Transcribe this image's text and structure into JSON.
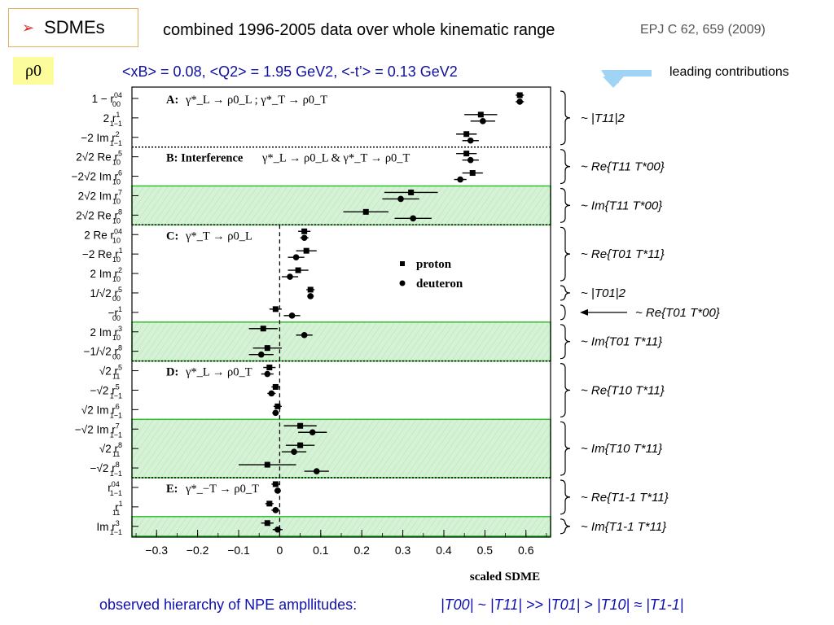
{
  "header": {
    "bullet_icon": "arrow-bullet",
    "title": "SDMEs",
    "subtitle": "combined 1996-2005 data over whole kinematic range",
    "reference": "EPJ C 62, 659 (2009)",
    "meson": "ρ0",
    "kinematics": "<xB> = 0.08,  <Q2> = 1.95 GeV2, <-t’> = 0.13 GeV2",
    "leading_label": "leading contributions"
  },
  "footer": {
    "prefix": "observed hierarchy of NPE ampllitudes:",
    "formula": "|T00| ~ |T11| >> |T01| > |T10| ≈ |T1-1|"
  },
  "colors": {
    "accent_text": "#1010a0",
    "band_fill": "#d6f2d6",
    "band_border": "#30c030",
    "callout_arrow": "#9fd4f4"
  },
  "chart_data": {
    "type": "scatter",
    "xlabel": "scaled SDME",
    "xlim": [
      -0.36,
      0.66
    ],
    "xticks": [
      "−0.3",
      "−0.2",
      "−0.1",
      "0",
      "0.1",
      "0.2",
      "0.3",
      "0.4",
      "0.5",
      "0.6"
    ],
    "legend": {
      "position": "middle-right",
      "entries": [
        {
          "marker": "square",
          "label": "proton"
        },
        {
          "marker": "circle",
          "label": "deuteron"
        }
      ]
    },
    "rows": [
      "1 − r^04_00",
      "2 r^1_1−1",
      "−2 Im r^2_1−1",
      "2√2 Re r^5_10",
      "−2√2 Im r^6_10",
      "2√2 Im r^7_10",
      "2√2 Re r^8_10",
      "2 Re r^04_10",
      "−2 Re r^1_10",
      "2 Im r^2_10",
      "1/√2 r^5_00",
      "−r^1_00",
      "2 Im r^3_10",
      "−1/√2 r^8_00",
      "√2 r^5_11",
      "−√2 r^5_1−1",
      "√2 Im r^6_1−1",
      "−√2 Im r^7_1−1",
      "√2 r^8_11",
      "−√2 r^8_1−1",
      "r^04_1−1",
      "r^1_11",
      "Im r^3_1−1"
    ],
    "groups": [
      {
        "label": "A:",
        "reaction": "γ*_L → ρ0_L ;  γ*_T → ρ0_T",
        "first_row": 0,
        "last_row": 2,
        "highlight": false
      },
      {
        "label": "B: Interference",
        "reaction": "γ*_L → ρ0_L & γ*_T → ρ0_T",
        "first_row": 3,
        "last_row": 4,
        "highlight": false
      },
      {
        "label": "",
        "reaction": "",
        "first_row": 5,
        "last_row": 6,
        "highlight": true
      },
      {
        "label": "C:",
        "reaction": "γ*_T → ρ0_L",
        "first_row": 7,
        "last_row": 11,
        "highlight": false
      },
      {
        "label": "",
        "reaction": "",
        "first_row": 12,
        "last_row": 13,
        "highlight": true
      },
      {
        "label": "D:",
        "reaction": "γ*_L → ρ0_T",
        "first_row": 14,
        "last_row": 16,
        "highlight": false
      },
      {
        "label": "",
        "reaction": "",
        "first_row": 17,
        "last_row": 19,
        "highlight": true
      },
      {
        "label": "E:",
        "reaction": "γ*_−T → ρ0_T",
        "first_row": 20,
        "last_row": 21,
        "highlight": false
      },
      {
        "label": "",
        "reaction": "",
        "first_row": 22,
        "last_row": 22,
        "highlight": true
      }
    ],
    "series": [
      {
        "name": "proton",
        "marker": "square",
        "points": [
          {
            "row": 0,
            "value": 0.585,
            "err": 0.01
          },
          {
            "row": 1,
            "value": 0.49,
            "err": 0.04
          },
          {
            "row": 2,
            "value": 0.455,
            "err": 0.025
          },
          {
            "row": 3,
            "value": 0.455,
            "err": 0.025
          },
          {
            "row": 4,
            "value": 0.47,
            "err": 0.025
          },
          {
            "row": 5,
            "value": 0.32,
            "err": 0.065
          },
          {
            "row": 6,
            "value": 0.21,
            "err": 0.055
          },
          {
            "row": 7,
            "value": 0.06,
            "err": 0.015
          },
          {
            "row": 8,
            "value": 0.065,
            "err": 0.025
          },
          {
            "row": 9,
            "value": 0.045,
            "err": 0.025
          },
          {
            "row": 10,
            "value": 0.075,
            "err": 0.01
          },
          {
            "row": 11,
            "value": -0.01,
            "err": 0.015
          },
          {
            "row": 12,
            "value": -0.04,
            "err": 0.035
          },
          {
            "row": 13,
            "value": -0.03,
            "err": 0.035
          },
          {
            "row": 14,
            "value": -0.025,
            "err": 0.015
          },
          {
            "row": 15,
            "value": -0.01,
            "err": 0.01
          },
          {
            "row": 16,
            "value": -0.005,
            "err": 0.01
          },
          {
            "row": 17,
            "value": 0.05,
            "err": 0.04
          },
          {
            "row": 18,
            "value": 0.05,
            "err": 0.035
          },
          {
            "row": 19,
            "value": -0.03,
            "err": 0.07
          },
          {
            "row": 20,
            "value": -0.01,
            "err": 0.01
          },
          {
            "row": 21,
            "value": -0.025,
            "err": 0.01
          },
          {
            "row": 22,
            "value": -0.03,
            "err": 0.015
          }
        ]
      },
      {
        "name": "deuteron",
        "marker": "circle",
        "points": [
          {
            "row": 0,
            "value": 0.585,
            "err": 0.01
          },
          {
            "row": 1,
            "value": 0.495,
            "err": 0.03
          },
          {
            "row": 2,
            "value": 0.465,
            "err": 0.02
          },
          {
            "row": 3,
            "value": 0.465,
            "err": 0.02
          },
          {
            "row": 4,
            "value": 0.44,
            "err": 0.015
          },
          {
            "row": 5,
            "value": 0.295,
            "err": 0.045
          },
          {
            "row": 6,
            "value": 0.325,
            "err": 0.045
          },
          {
            "row": 7,
            "value": 0.06,
            "err": 0.01
          },
          {
            "row": 8,
            "value": 0.04,
            "err": 0.02
          },
          {
            "row": 9,
            "value": 0.025,
            "err": 0.02
          },
          {
            "row": 10,
            "value": 0.075,
            "err": 0.008
          },
          {
            "row": 11,
            "value": 0.03,
            "err": 0.02
          },
          {
            "row": 12,
            "value": 0.06,
            "err": 0.02
          },
          {
            "row": 13,
            "value": -0.045,
            "err": 0.03
          },
          {
            "row": 14,
            "value": -0.03,
            "err": 0.015
          },
          {
            "row": 15,
            "value": -0.02,
            "err": 0.01
          },
          {
            "row": 16,
            "value": -0.01,
            "err": 0.008
          },
          {
            "row": 17,
            "value": 0.08,
            "err": 0.035
          },
          {
            "row": 18,
            "value": 0.035,
            "err": 0.03
          },
          {
            "row": 19,
            "value": 0.09,
            "err": 0.03
          },
          {
            "row": 20,
            "value": -0.005,
            "err": 0.008
          },
          {
            "row": 21,
            "value": -0.01,
            "err": 0.01
          },
          {
            "row": 22,
            "value": -0.005,
            "err": 0.012
          }
        ]
      }
    ],
    "annotations": [
      {
        "text": "~ |T11|2",
        "first_row": 0,
        "last_row": 2
      },
      {
        "text": "~ Re{T11 T*00}",
        "first_row": 3,
        "last_row": 4
      },
      {
        "text": "~ Im{T11 T*00}",
        "first_row": 5,
        "last_row": 6
      },
      {
        "text": "~ Re{T01 T*11}",
        "first_row": 7,
        "last_row": 9
      },
      {
        "text": "~ |T01|2",
        "first_row": 10,
        "last_row": 10
      },
      {
        "text": "~ Re{T01 T*00}",
        "first_row": 11,
        "last_row": 11,
        "pointer": true
      },
      {
        "text": "~ Im{T01 T*11}",
        "first_row": 12,
        "last_row": 13
      },
      {
        "text": "~ Re{T10 T*11}",
        "first_row": 14,
        "last_row": 16
      },
      {
        "text": "~ Im{T10 T*11}",
        "first_row": 17,
        "last_row": 19
      },
      {
        "text": "~ Re{T1-1 T*11}",
        "first_row": 20,
        "last_row": 21
      },
      {
        "text": "~ Im{T1-1 T*11}",
        "first_row": 22,
        "last_row": 22
      }
    ]
  }
}
